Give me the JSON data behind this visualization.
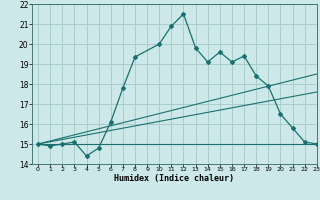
{
  "title": "",
  "xlabel": "Humidex (Indice chaleur)",
  "background_color": "#cde8e8",
  "grid_color": "#aacccc",
  "line_color": "#1a7070",
  "x_data": [
    0,
    1,
    2,
    3,
    4,
    5,
    6,
    7,
    8,
    10,
    11,
    12,
    13,
    14,
    15,
    16,
    17,
    18,
    19,
    20,
    21,
    22,
    23
  ],
  "y_main": [
    15.0,
    14.9,
    15.0,
    15.1,
    14.4,
    14.8,
    16.1,
    17.8,
    19.35,
    20.0,
    20.9,
    21.5,
    19.8,
    19.1,
    19.6,
    19.1,
    19.4,
    18.4,
    17.9,
    16.5,
    15.8,
    15.1,
    15.0
  ],
  "ylim": [
    14,
    22
  ],
  "xlim": [
    -0.5,
    23
  ],
  "yticks": [
    14,
    15,
    16,
    17,
    18,
    19,
    20,
    21,
    22
  ],
  "xticks": [
    0,
    1,
    2,
    3,
    4,
    5,
    6,
    7,
    8,
    9,
    10,
    11,
    12,
    13,
    14,
    15,
    16,
    17,
    18,
    19,
    20,
    21,
    22,
    23
  ],
  "reg_line1": {
    "x": [
      0,
      23
    ],
    "y": [
      15.0,
      18.5
    ]
  },
  "reg_line2": {
    "x": [
      0,
      23
    ],
    "y": [
      15.0,
      17.6
    ]
  },
  "flat_line": {
    "x": [
      0,
      23
    ],
    "y": [
      15.0,
      15.0
    ]
  }
}
